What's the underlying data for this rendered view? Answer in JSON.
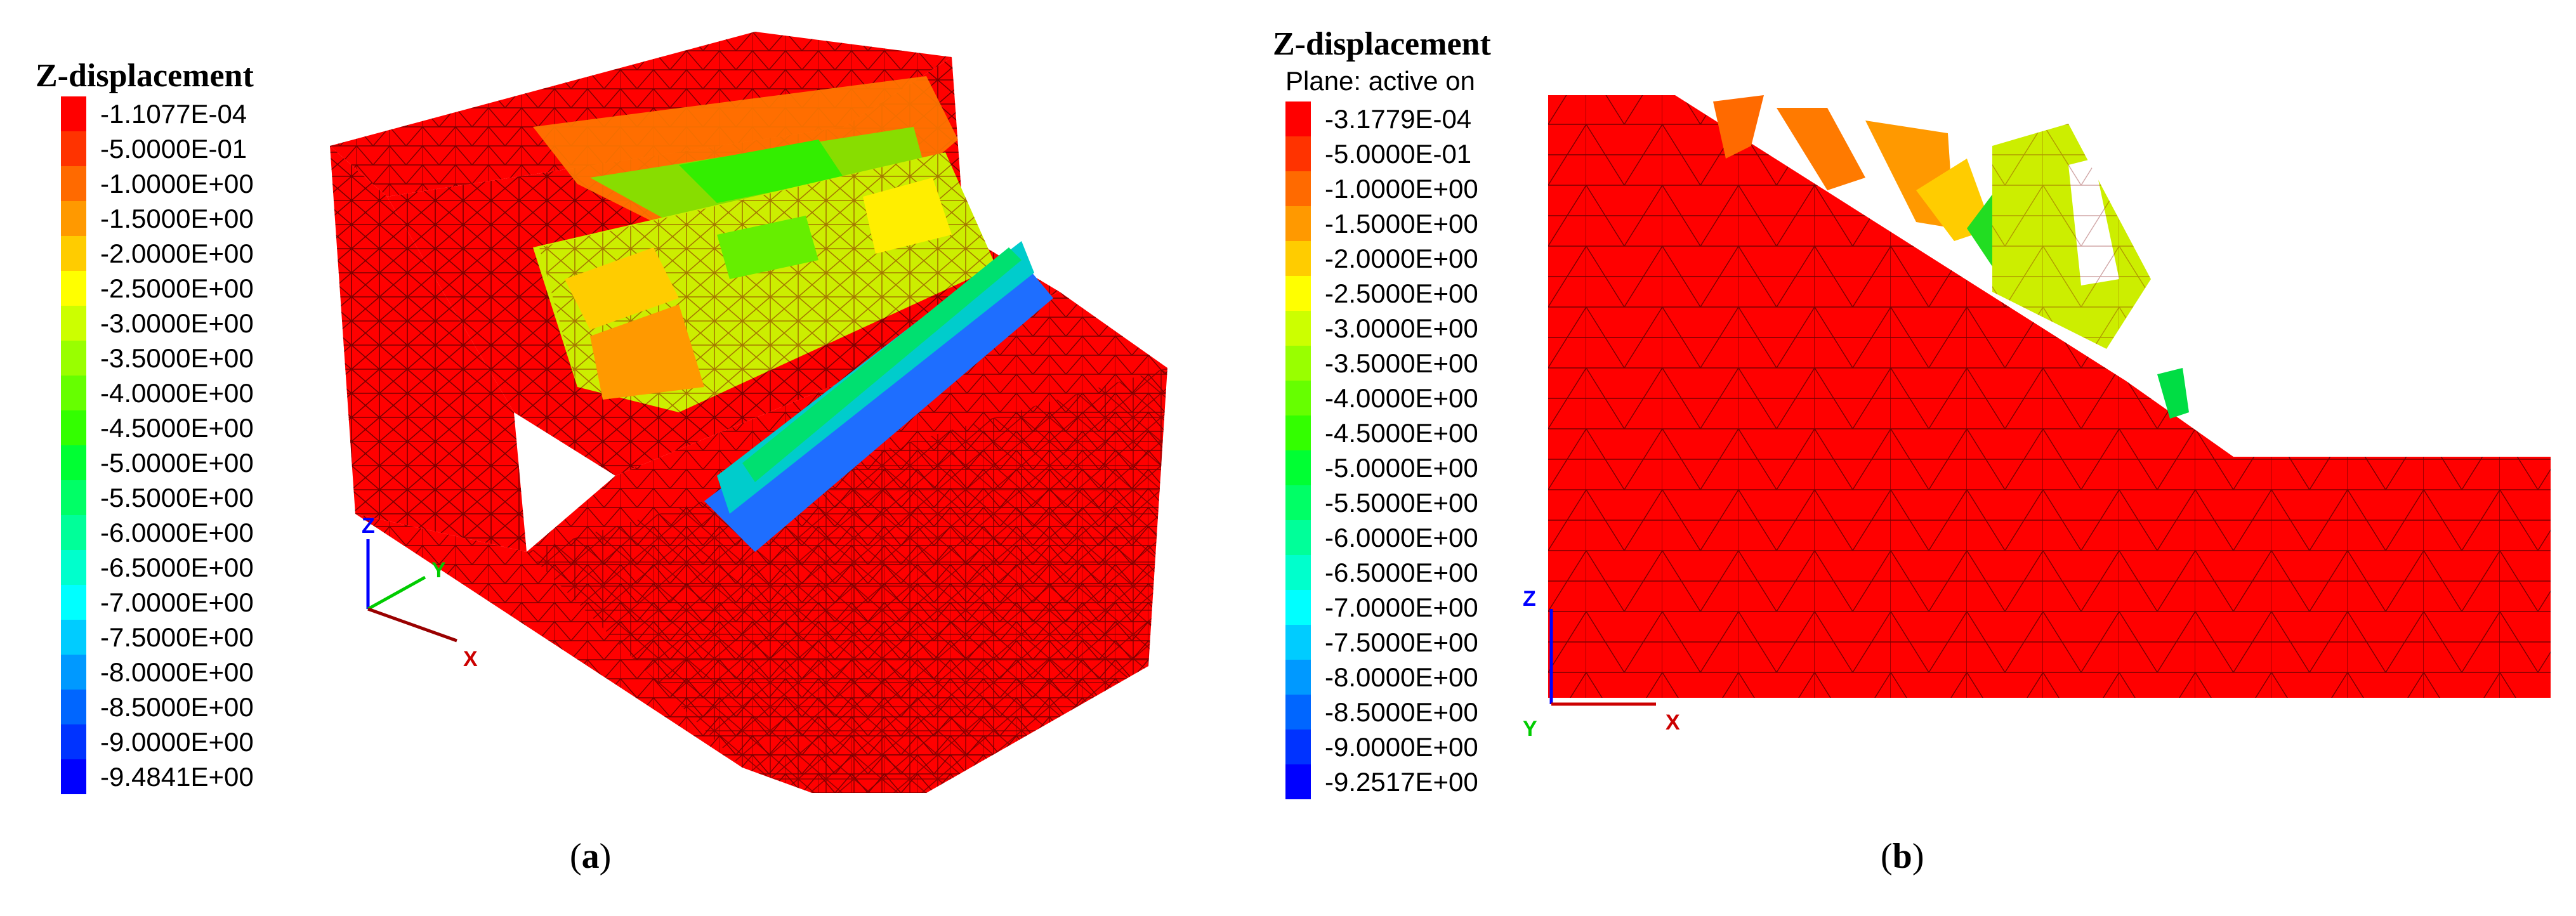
{
  "panels": [
    {
      "id": "a",
      "caption_letter": "a",
      "legend_title": "Z-displacement",
      "legend_subtitle": "",
      "legend_entries": [
        {
          "label": "-1.1077E-04",
          "color": "#ff0000"
        },
        {
          "label": "-5.0000E-01",
          "color": "#ff3300"
        },
        {
          "label": "-1.0000E+00",
          "color": "#ff6a00"
        },
        {
          "label": "-1.5000E+00",
          "color": "#ff9900"
        },
        {
          "label": "-2.0000E+00",
          "color": "#ffcc00"
        },
        {
          "label": "-2.5000E+00",
          "color": "#ffff00"
        },
        {
          "label": "-3.0000E+00",
          "color": "#ccff00"
        },
        {
          "label": "-3.5000E+00",
          "color": "#99ff00"
        },
        {
          "label": "-4.0000E+00",
          "color": "#66ff00"
        },
        {
          "label": "-4.5000E+00",
          "color": "#33ff00"
        },
        {
          "label": "-5.0000E+00",
          "color": "#00ff33"
        },
        {
          "label": "-5.5000E+00",
          "color": "#00ff66"
        },
        {
          "label": "-6.0000E+00",
          "color": "#00ff99"
        },
        {
          "label": "-6.5000E+00",
          "color": "#00ffcc"
        },
        {
          "label": "-7.0000E+00",
          "color": "#00ffff"
        },
        {
          "label": "-7.5000E+00",
          "color": "#00ccff"
        },
        {
          "label": "-8.0000E+00",
          "color": "#0099ff"
        },
        {
          "label": "-8.5000E+00",
          "color": "#0066ff"
        },
        {
          "label": "-9.0000E+00",
          "color": "#0033ff"
        },
        {
          "label": "-9.4841E+00",
          "color": "#0000ff"
        }
      ],
      "axis_labels": {
        "z": "Z",
        "y": "Y",
        "x": "X"
      }
    },
    {
      "id": "b",
      "caption_letter": "b",
      "legend_title": "Z-displacement",
      "legend_subtitle": "Plane: active on",
      "legend_entries": [
        {
          "label": "-3.1779E-04",
          "color": "#ff0000"
        },
        {
          "label": "-5.0000E-01",
          "color": "#ff3300"
        },
        {
          "label": "-1.0000E+00",
          "color": "#ff6a00"
        },
        {
          "label": "-1.5000E+00",
          "color": "#ff9900"
        },
        {
          "label": "-2.0000E+00",
          "color": "#ffcc00"
        },
        {
          "label": "-2.5000E+00",
          "color": "#ffff00"
        },
        {
          "label": "-3.0000E+00",
          "color": "#ccff00"
        },
        {
          "label": "-3.5000E+00",
          "color": "#99ff00"
        },
        {
          "label": "-4.0000E+00",
          "color": "#66ff00"
        },
        {
          "label": "-4.5000E+00",
          "color": "#33ff00"
        },
        {
          "label": "-5.0000E+00",
          "color": "#00ff33"
        },
        {
          "label": "-5.5000E+00",
          "color": "#00ff66"
        },
        {
          "label": "-6.0000E+00",
          "color": "#00ff99"
        },
        {
          "label": "-6.5000E+00",
          "color": "#00ffcc"
        },
        {
          "label": "-7.0000E+00",
          "color": "#00ffff"
        },
        {
          "label": "-7.5000E+00",
          "color": "#00ccff"
        },
        {
          "label": "-8.0000E+00",
          "color": "#0099ff"
        },
        {
          "label": "-8.5000E+00",
          "color": "#0066ff"
        },
        {
          "label": "-9.0000E+00",
          "color": "#0033ff"
        },
        {
          "label": "-9.2517E+00",
          "color": "#0000ff"
        }
      ],
      "axis_labels": {
        "z": "Z",
        "y": "Y",
        "x": "X"
      }
    }
  ],
  "colors": {
    "mesh_base": "#ff0000",
    "mesh_line": "#7a0000",
    "axis_z": "#0000ff",
    "axis_y": "#00cc00",
    "axis_x": "#cc0000",
    "axis_x_3d": "#990000"
  }
}
